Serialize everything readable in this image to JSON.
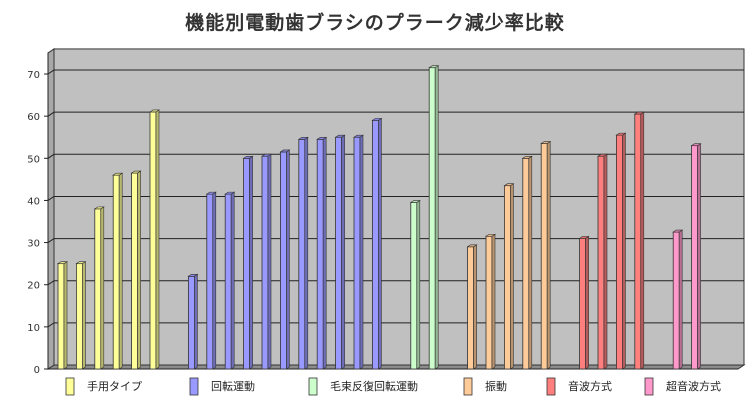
{
  "chart_data": {
    "type": "bar",
    "title": "機能別電動歯ブラシのプラーク減少率比較",
    "xlabel": "",
    "ylabel": "",
    "ylim": [
      0,
      75
    ],
    "yticks": [
      0,
      10,
      20,
      30,
      40,
      50,
      60,
      70
    ],
    "grid": true,
    "legend_position": "bottom",
    "groups": [
      {
        "name": "手用タイプ",
        "color": "#ffff99",
        "values": [
          25,
          25,
          38,
          46,
          46.5,
          61
        ]
      },
      {
        "name": "回転運動",
        "color": "#9999ff",
        "values": [
          22,
          41.5,
          41.5,
          50,
          50.5,
          51.5,
          54.5,
          54.5,
          55,
          55,
          59
        ]
      },
      {
        "name": "毛束反復回転運動",
        "color": "#ccffcc",
        "values": [
          39.5,
          71.5
        ]
      },
      {
        "name": "振動",
        "color": "#ffcc99",
        "values": [
          29,
          31.5,
          43.5,
          50,
          53.5
        ]
      },
      {
        "name": "音波方式",
        "color": "#ff7f7f",
        "values": [
          31,
          50.5,
          55.5,
          60.5
        ]
      },
      {
        "name": "超音波方式",
        "color": "#ff99cc",
        "values": [
          32.5,
          53
        ]
      }
    ]
  }
}
